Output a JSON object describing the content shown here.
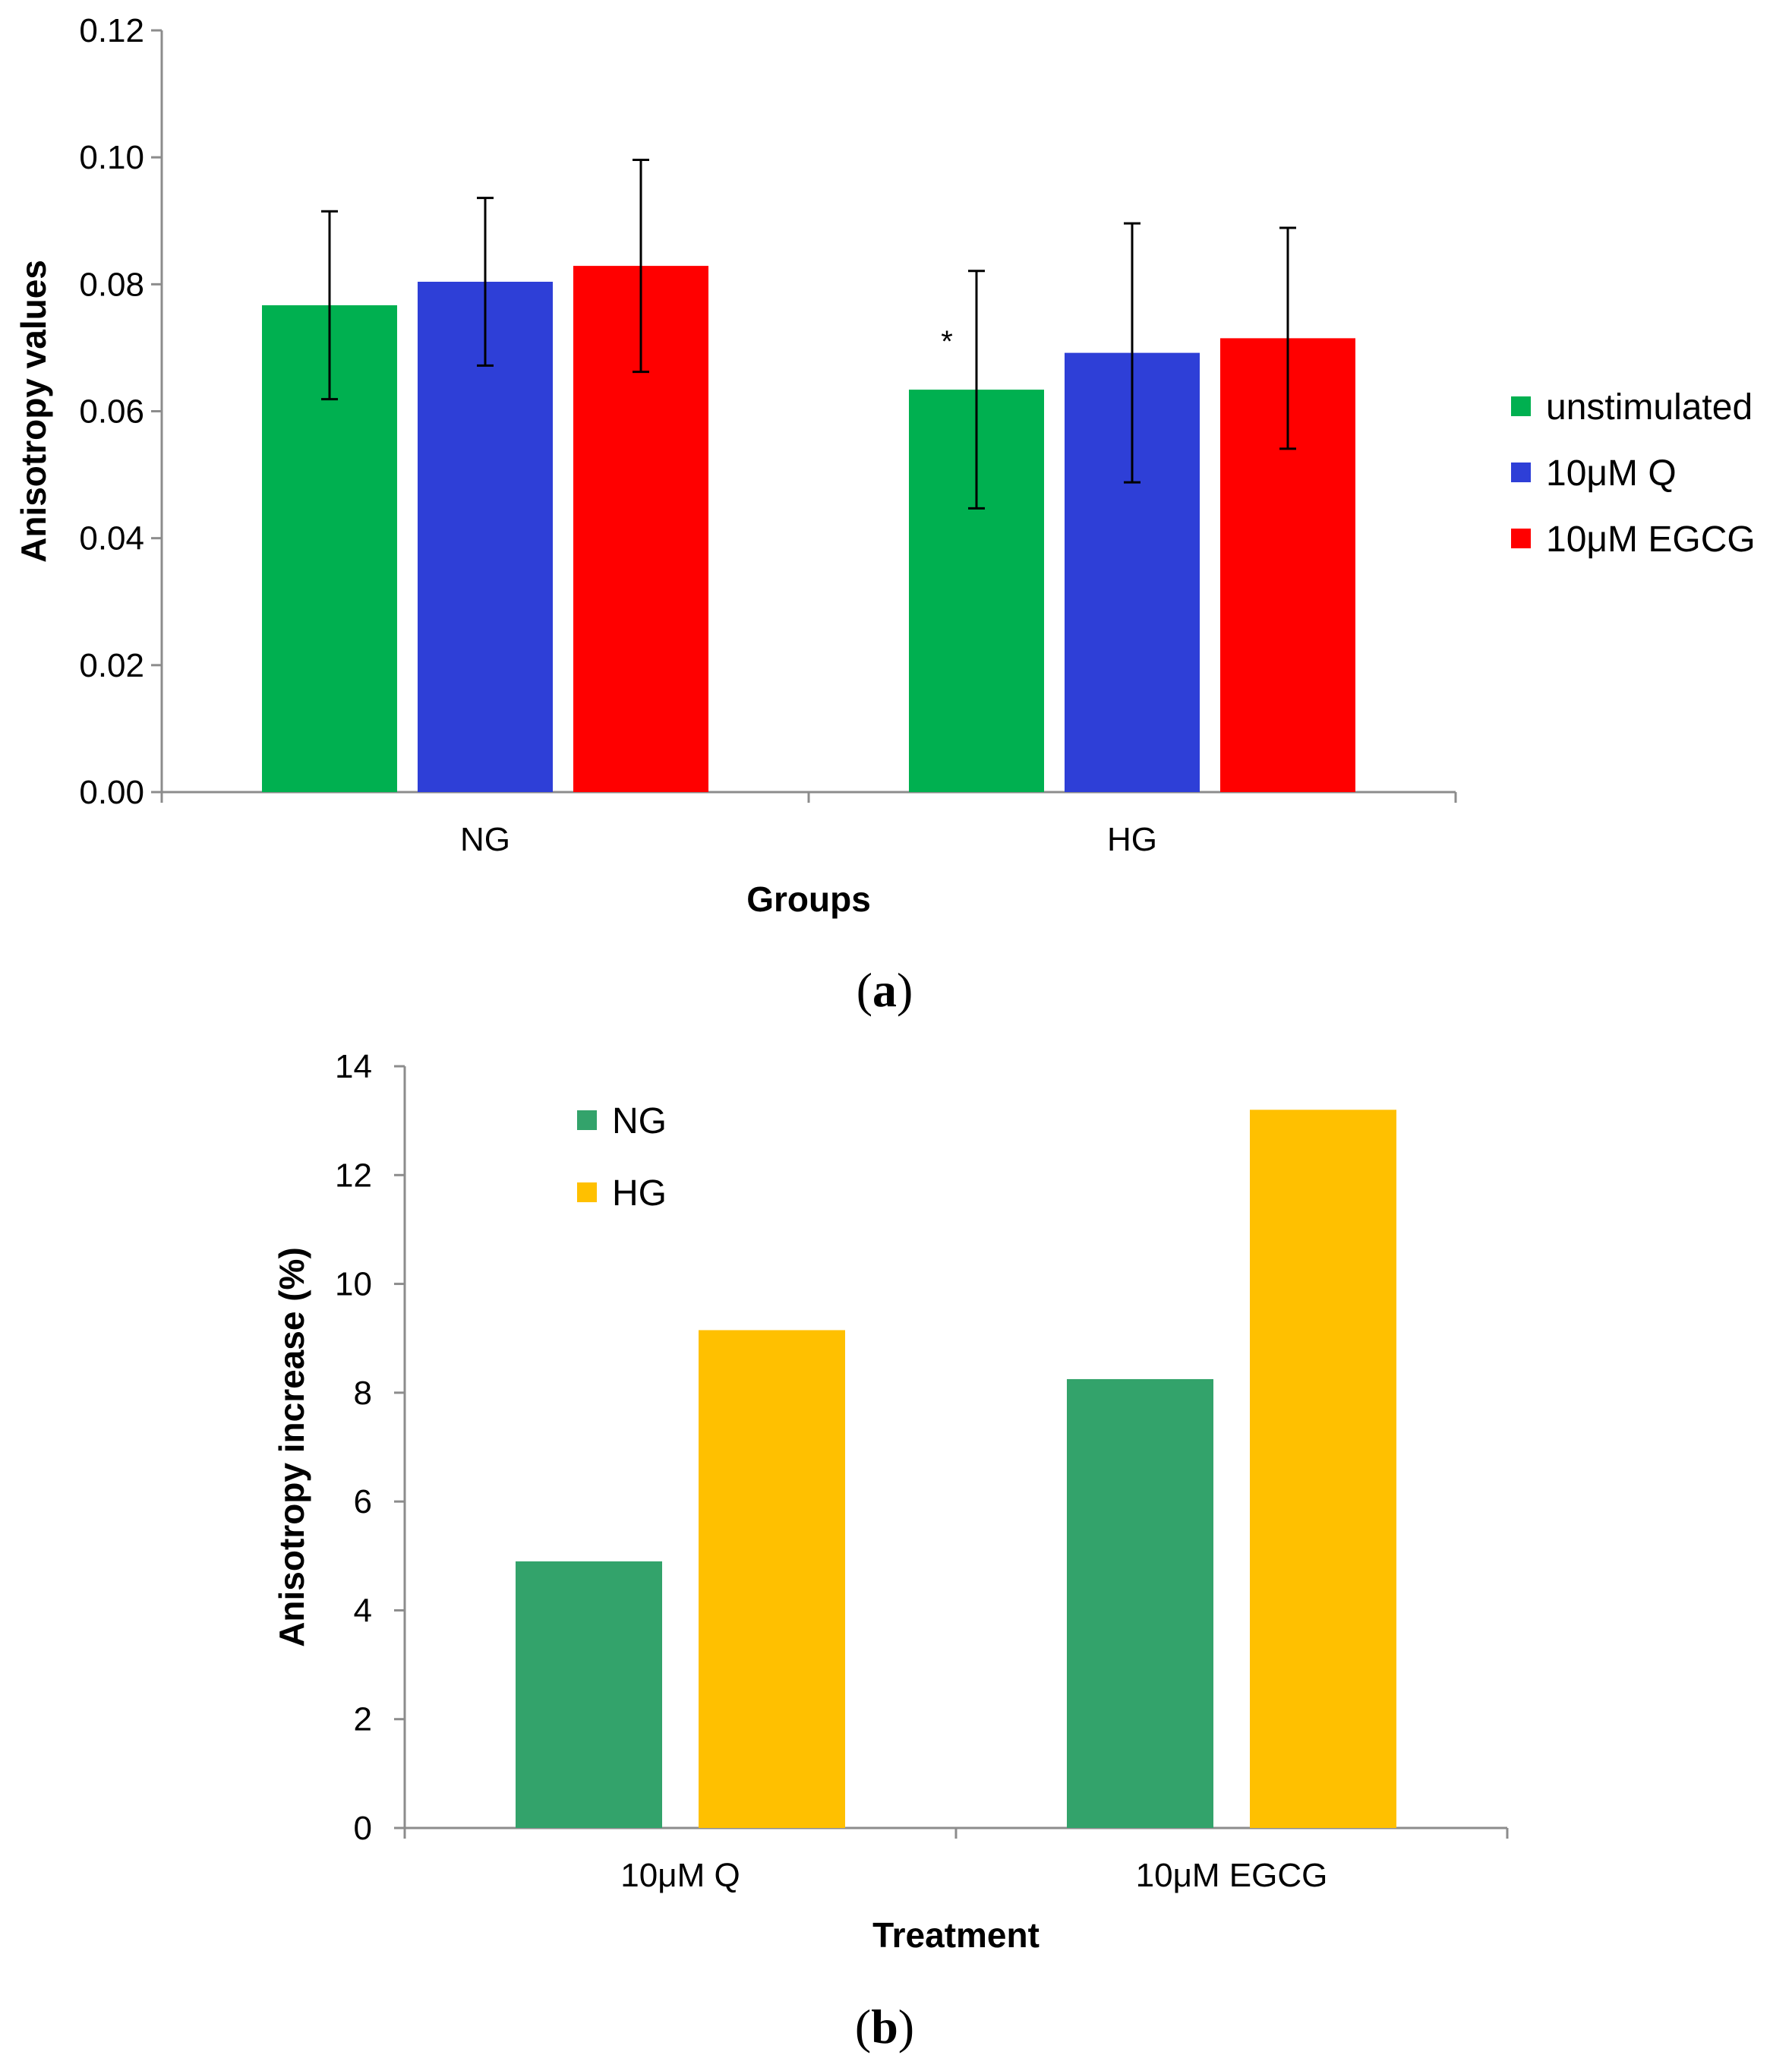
{
  "chart_data": [
    {
      "type": "bar",
      "panel_label": "a",
      "categories": [
        "NG",
        "HG"
      ],
      "series": [
        {
          "name": "unstimulated",
          "color": "#00b050",
          "values": [
            0.0767,
            0.0634
          ],
          "error": [
            0.0148,
            0.0187
          ]
        },
        {
          "name": "10μM Q",
          "color": "#2e3fd7",
          "values": [
            0.0804,
            0.0692
          ],
          "error": [
            0.0132,
            0.0204
          ]
        },
        {
          "name": "10μM EGCG",
          "color": "#ff0000",
          "values": [
            0.0829,
            0.0715
          ],
          "error": [
            0.0167,
            0.0174
          ]
        }
      ],
      "annotations": [
        {
          "text": "*",
          "category": "HG",
          "series": "unstimulated"
        }
      ],
      "xlabel": "Groups",
      "ylabel": "Anisotropy values",
      "ylim": [
        0,
        0.12
      ],
      "yticks": [
        "0.00",
        "0.02",
        "0.04",
        "0.06",
        "0.08",
        "0.10",
        "0.12"
      ],
      "grid": false,
      "legend_position": "right"
    },
    {
      "type": "bar",
      "panel_label": "b",
      "categories": [
        "10μM Q",
        "10μM EGCG"
      ],
      "series": [
        {
          "name": "NG",
          "color": "#33a36b",
          "values": [
            4.9,
            8.25
          ]
        },
        {
          "name": "HG",
          "color": "#ffc000",
          "values": [
            9.15,
            13.2
          ]
        }
      ],
      "xlabel": "Treatment",
      "ylabel": "Anisotropy increase (%)",
      "ylim": [
        0,
        14
      ],
      "yticks": [
        "0",
        "2",
        "4",
        "6",
        "8",
        "10",
        "12",
        "14"
      ],
      "grid": false,
      "legend_position": "top-left"
    }
  ]
}
